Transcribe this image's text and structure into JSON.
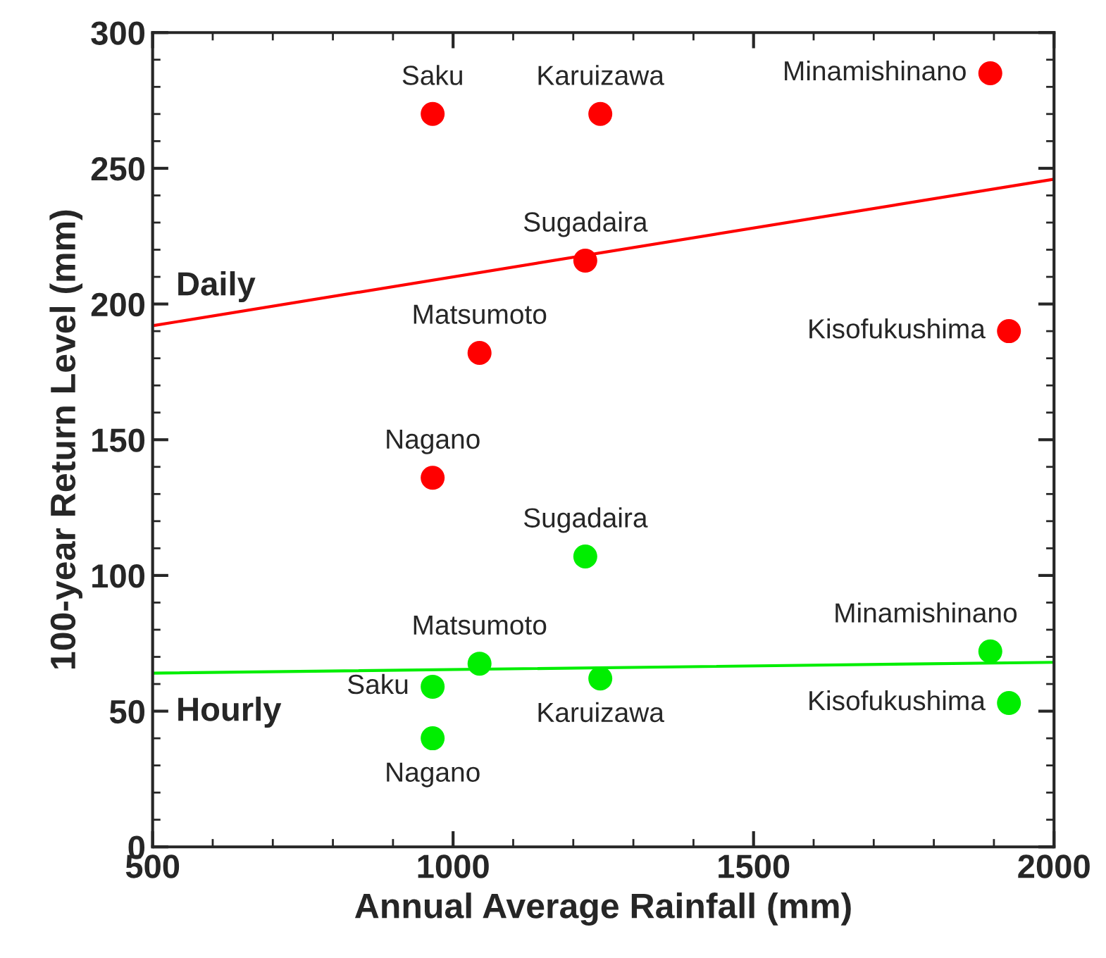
{
  "chart_data": {
    "type": "scatter",
    "xlabel": "Annual Average Rainfall (mm)",
    "ylabel": "100-year Return Level (mm)",
    "xlim": [
      500,
      2000
    ],
    "xticks": [
      500,
      1000,
      1500,
      2000
    ],
    "ylim": [
      0,
      300
    ],
    "yticks": [
      0,
      50,
      100,
      150,
      200,
      250,
      300
    ],
    "grid": false,
    "series": [
      {
        "color": "#ff0000",
        "marker": "circle",
        "x": [
          966,
          1245,
          1894,
          1220,
          1925,
          1044,
          966
        ],
        "values": [
          270,
          270,
          285,
          216,
          190,
          182,
          136
        ]
      },
      {
        "color": "#00ee00",
        "marker": "circle",
        "x": [
          1220,
          1044,
          966,
          966,
          1245,
          1894,
          1925
        ],
        "values": [
          107,
          67.5,
          59,
          40,
          62,
          72,
          53
        ]
      },
      {
        "type": "line",
        "name": "Daily",
        "color": "#ff0000",
        "x": [
          500,
          2000
        ],
        "values": [
          192,
          246
        ]
      },
      {
        "type": "line",
        "name": "Hourly",
        "color": "#00ee00",
        "x": [
          500,
          2000
        ],
        "values": [
          64,
          68
        ]
      }
    ],
    "annotations": [
      {
        "text": "Saku",
        "x": 966,
        "y": 270
      },
      {
        "text": "Karuizawa",
        "x": 1245,
        "y": 270
      },
      {
        "text": "Minamishinano",
        "x": 1894,
        "y": 285
      },
      {
        "text": "Sugadaira",
        "x": 1220,
        "y": 216
      },
      {
        "text": "Kisofukushima",
        "x": 1925,
        "y": 190
      },
      {
        "text": "Matsumoto",
        "x": 1044,
        "y": 182
      },
      {
        "text": "Nagano",
        "x": 966,
        "y": 136
      },
      {
        "text": "Sugadaira",
        "x": 1220,
        "y": 107
      },
      {
        "text": "Matsumoto",
        "x": 1044,
        "y": 67.5
      },
      {
        "text": "Saku",
        "x": 966,
        "y": 59
      },
      {
        "text": "Nagano",
        "x": 966,
        "y": 40
      },
      {
        "text": "Karuizawa",
        "x": 1245,
        "y": 62
      },
      {
        "text": "Minamishinano",
        "x": 1894,
        "y": 72
      },
      {
        "text": "Kisofukushima",
        "x": 1925,
        "y": 53
      }
    ]
  }
}
